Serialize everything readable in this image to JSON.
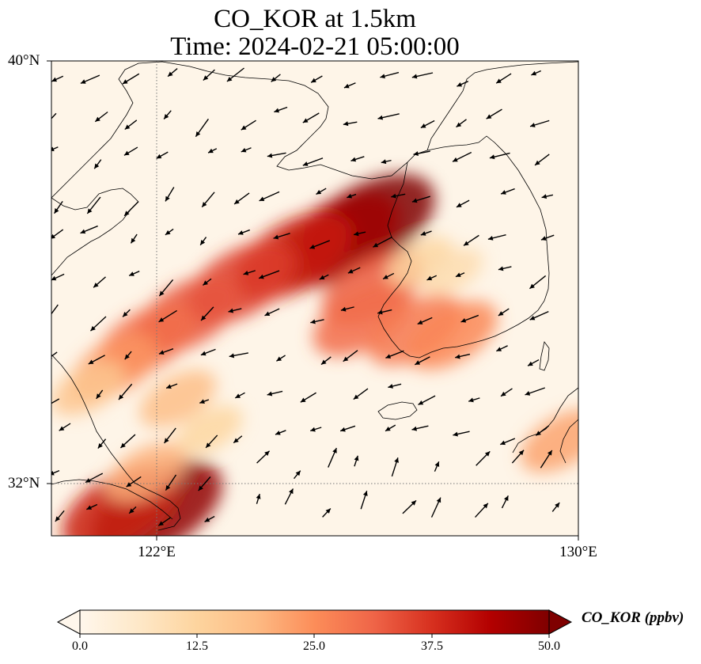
{
  "title": {
    "line1": "CO_KOR at 1.5km",
    "line2": "Time: 2024-02-21 05:00:00"
  },
  "map": {
    "variable": "CO_KOR",
    "height": "1.5km",
    "lat_range": [
      31,
      40
    ],
    "lon_range": [
      120,
      130
    ],
    "lat_ticks": [
      {
        "value": 32,
        "label": "32°N"
      },
      {
        "value": 40,
        "label": "40°N"
      }
    ],
    "lon_ticks": [
      {
        "value": 122,
        "label": "122°E"
      },
      {
        "value": 130,
        "label": "130°E"
      }
    ],
    "gridlines": "dotted",
    "land_background": "#fef5e8",
    "coastline_color": "#000000",
    "wind_vector_color": "#000000",
    "plumes": [
      {
        "lon": 126.0,
        "lat": 36.9,
        "value": 50
      },
      {
        "lon": 125.4,
        "lat": 36.6,
        "value": 46
      },
      {
        "lon": 124.6,
        "lat": 36.3,
        "value": 40
      },
      {
        "lon": 123.6,
        "lat": 35.8,
        "value": 36
      },
      {
        "lon": 122.6,
        "lat": 35.2,
        "value": 33
      },
      {
        "lon": 121.8,
        "lat": 34.7,
        "value": 30
      },
      {
        "lon": 121.2,
        "lat": 34.2,
        "value": 24
      },
      {
        "lon": 120.7,
        "lat": 33.8,
        "value": 16
      },
      {
        "lon": 126.1,
        "lat": 35.7,
        "value": 32
      },
      {
        "lon": 125.9,
        "lat": 35.1,
        "value": 30
      },
      {
        "lon": 126.9,
        "lat": 34.9,
        "value": 28
      },
      {
        "lon": 127.6,
        "lat": 34.8,
        "value": 26
      },
      {
        "lon": 122.0,
        "lat": 31.5,
        "value": 48
      },
      {
        "lon": 121.3,
        "lat": 31.5,
        "value": 40
      },
      {
        "lon": 121.8,
        "lat": 32.2,
        "value": 20
      },
      {
        "lon": 122.4,
        "lat": 33.6,
        "value": 18
      },
      {
        "lon": 123.0,
        "lat": 33.0,
        "value": 12
      },
      {
        "lon": 129.7,
        "lat": 32.8,
        "value": 22
      },
      {
        "lon": 127.0,
        "lat": 36.2,
        "value": 12
      },
      {
        "lon": 127.6,
        "lat": 36.0,
        "value": 10
      }
    ]
  },
  "colorbar": {
    "label": "CO_KOR (ppbv)",
    "min": 0.0,
    "max": 50.0,
    "extend": "both",
    "colormap": "OrRd",
    "colors": [
      "#fff7ec",
      "#fee8c8",
      "#fdd49e",
      "#fdbb84",
      "#fc8d59",
      "#ef6548",
      "#d7301f",
      "#b30000",
      "#7f0000"
    ],
    "ticks": [
      "0.0",
      "12.5",
      "25.0",
      "37.5",
      "50.0"
    ]
  }
}
